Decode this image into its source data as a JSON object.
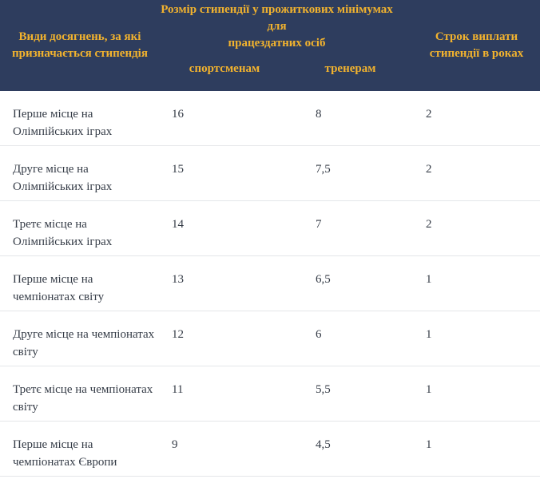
{
  "colors": {
    "header_bg": "#2e3d5e",
    "header_text": "#f2b32e",
    "body_text": "#343b46",
    "divider": "#e4e6e9"
  },
  "table": {
    "header": {
      "achievements_label": "Види досягнень, за які\nпризначається стипендія",
      "size_group_label": "Розмір стипендії у прожиткових мінімумах для\nпрацездатних осіб",
      "athletes_label": "спортсменам",
      "coaches_label": "тренерам",
      "term_label": "Строк виплати\nстипендії в роках"
    },
    "rows": [
      {
        "achievement": "Перше місце на\nОлімпійських іграх",
        "athletes": "16",
        "coaches": "8",
        "years": "2"
      },
      {
        "achievement": "Друге місце на\nОлімпійських іграх",
        "athletes": "15",
        "coaches": "7,5",
        "years": "2"
      },
      {
        "achievement": "Третє місце на\nОлімпійських іграх",
        "athletes": "14",
        "coaches": "7",
        "years": "2"
      },
      {
        "achievement": "Перше місце на\nчемпіонатах світу",
        "athletes": "13",
        "coaches": "6,5",
        "years": "1"
      },
      {
        "achievement": "Друге місце на чемпіонатах\nсвіту",
        "athletes": "12",
        "coaches": "6",
        "years": "1"
      },
      {
        "achievement": "Третє місце на чемпіонатах\nсвіту",
        "athletes": "11",
        "coaches": "5,5",
        "years": "1"
      },
      {
        "achievement": "Перше місце на\nчемпіонатах Європи",
        "athletes": "9",
        "coaches": "4,5",
        "years": "1"
      }
    ]
  }
}
